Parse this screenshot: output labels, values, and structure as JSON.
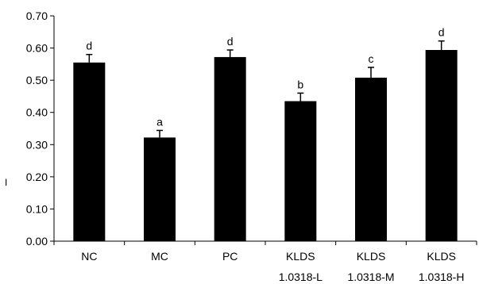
{
  "chart_data": {
    "type": "bar",
    "categories": [
      [
        "NC"
      ],
      [
        "MC"
      ],
      [
        "PC"
      ],
      [
        "KLDS",
        "1.0318-L"
      ],
      [
        "KLDS",
        "1.0318-M"
      ],
      [
        "KLDS",
        "1.0318-H"
      ]
    ],
    "values": [
      0.555,
      0.322,
      0.572,
      0.435,
      0.508,
      0.594
    ],
    "errors": [
      0.025,
      0.022,
      0.022,
      0.025,
      0.032,
      0.028
    ],
    "significance": [
      "d",
      "a",
      "d",
      "b",
      "c",
      "d"
    ],
    "yticks": [
      "0.00",
      "0.10",
      "0.20",
      "0.30",
      "0.40",
      "0.50",
      "0.60",
      "0.70"
    ],
    "ylim": [
      0,
      0.7
    ],
    "ylabel": "I",
    "xlabel": "",
    "title": "",
    "grid": false,
    "bar_color": "#000000"
  }
}
